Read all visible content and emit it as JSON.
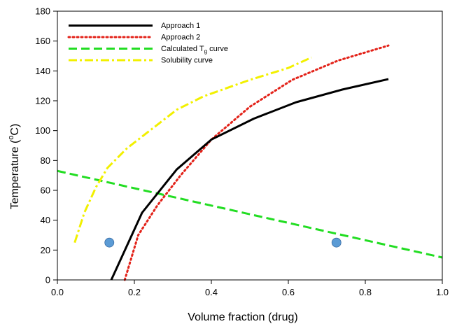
{
  "chart_data": {
    "type": "line",
    "xlabel": "Volume fraction (drug)",
    "ylabel": "Temperature (",
    "ylabel_super": "o",
    "ylabel_unit": "C)",
    "xlim": [
      0.0,
      1.0
    ],
    "ylim": [
      0,
      180
    ],
    "xticks": [
      0.0,
      0.2,
      0.4,
      0.6,
      0.8,
      1.0
    ],
    "xtick_labels": [
      "0.0",
      "0.2",
      "0.4",
      "0.6",
      "0.8",
      "1.0"
    ],
    "yticks": [
      0,
      20,
      40,
      60,
      80,
      100,
      120,
      140,
      160,
      180
    ],
    "ytick_labels": [
      "0",
      "20",
      "40",
      "60",
      "80",
      "100",
      "120",
      "140",
      "160",
      "180"
    ],
    "grid": false,
    "legend_position": "top-left",
    "series": [
      {
        "name": "Approach 1",
        "color": "#000000",
        "dash": "solid",
        "x": [
          0.14,
          0.22,
          0.31,
          0.4,
          0.51,
          0.62,
          0.74,
          0.86
        ],
        "y": [
          0,
          45,
          74,
          94,
          108,
          119,
          127.5,
          134.5
        ]
      },
      {
        "name": "Approach 2",
        "color": "#e32219",
        "dash": "dotted",
        "x": [
          0.175,
          0.21,
          0.26,
          0.32,
          0.4,
          0.5,
          0.61,
          0.73,
          0.86
        ],
        "y": [
          0,
          30,
          50,
          70,
          94,
          116,
          134,
          147,
          157
        ]
      },
      {
        "name": "Calculated T",
        "name_sub": "g",
        "name_suffix": " curve",
        "color": "#22dd22",
        "dash": "dashed",
        "x": [
          0.0,
          1.0
        ],
        "y": [
          73,
          15
        ]
      },
      {
        "name": "Solubility curve",
        "color": "#f2f000",
        "dash": "dashdot",
        "x": [
          0.045,
          0.07,
          0.1,
          0.13,
          0.18,
          0.24,
          0.31,
          0.38,
          0.5,
          0.6,
          0.66
        ],
        "y": [
          25,
          45,
          62,
          75,
          88,
          100,
          114,
          123,
          134,
          142,
          149
        ]
      }
    ],
    "points": {
      "color": "#5b9bd5",
      "x": [
        0.135,
        0.725
      ],
      "y": [
        25,
        25
      ]
    }
  }
}
